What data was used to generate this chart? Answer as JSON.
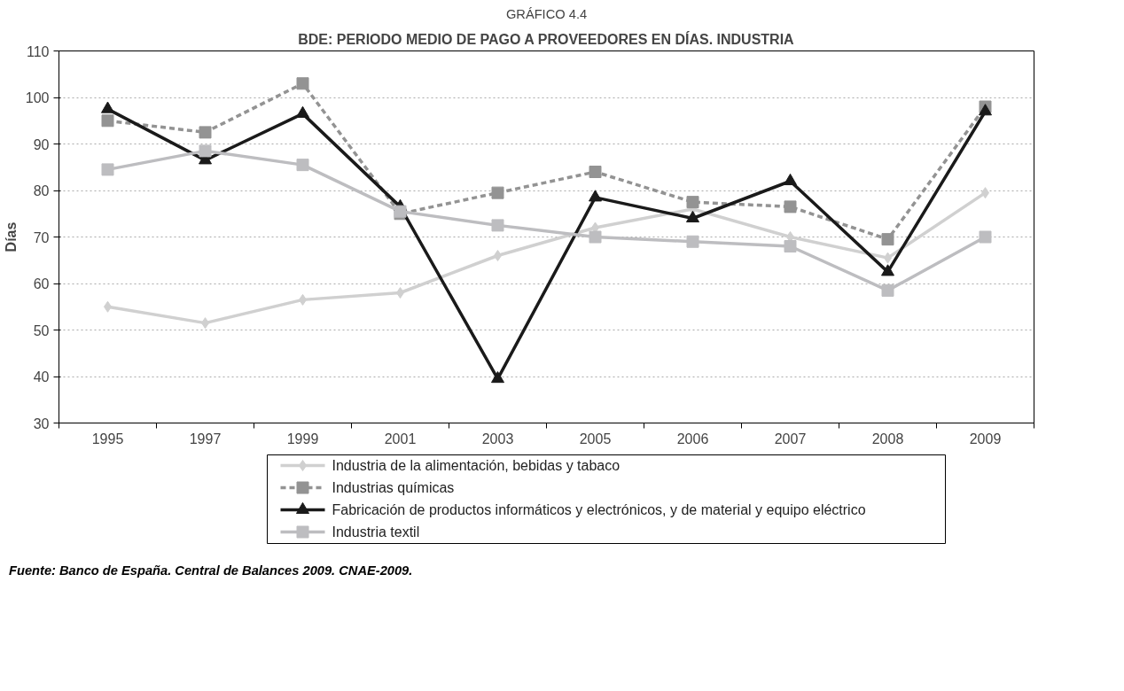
{
  "chart_data": {
    "type": "line",
    "title": "GRÁFICO 4.4",
    "subtitle": "BDE: PERIODO MEDIO DE PAGO A PROVEEDORES EN DÍAS. INDUSTRIA",
    "ylabel": "Días",
    "categories": [
      "1995",
      "1997",
      "1999",
      "2001",
      "2003",
      "2005",
      "2006",
      "2007",
      "2008",
      "2009"
    ],
    "series": [
      {
        "name": "Industria de la alimentación, bebidas y tabaco",
        "color": "#d0d0d0",
        "marker": "diamond",
        "line_style": "solid",
        "values": [
          55,
          51.5,
          56.5,
          58,
          66,
          72,
          76,
          70,
          65.5,
          79.5
        ]
      },
      {
        "name": "Industrias químicas",
        "color": "#939393",
        "marker": "square",
        "line_style": "dashed",
        "values": [
          95,
          92.5,
          103,
          75,
          79.5,
          84,
          77.5,
          76.5,
          69.5,
          98
        ]
      },
      {
        "name": "Fabricación de productos informáticos y electrónicos, y de material y equipo eléctrico",
        "color": "#1a1a1a",
        "marker": "triangle",
        "line_style": "solid",
        "values": [
          97.5,
          86.5,
          96.5,
          76.5,
          39.5,
          78.5,
          74,
          82,
          62.5,
          97
        ]
      },
      {
        "name": "Industria textil",
        "color": "#bdbdc0",
        "marker": "square",
        "line_style": "solid",
        "values": [
          84.5,
          88.5,
          85.5,
          75.5,
          72.5,
          70,
          69,
          68,
          58.5,
          70
        ]
      }
    ],
    "ylim": [
      30,
      110
    ],
    "yticks": [
      30,
      40,
      50,
      60,
      70,
      80,
      90,
      100,
      110
    ],
    "grid": "y",
    "legend": "bottom",
    "annotations": [
      "Fuente: Banco de España. Central de Balances 2009. CNAE-2009."
    ]
  }
}
